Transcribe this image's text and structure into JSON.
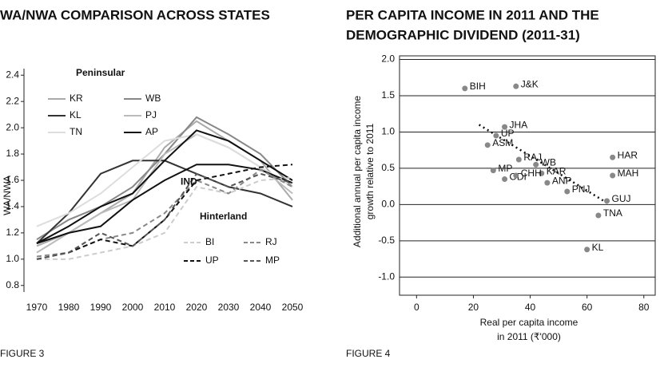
{
  "chart_data": [
    {
      "type": "line",
      "title": "WA/NWA COMPARISON ACROSS STATES",
      "ylabel": "WA/NWA",
      "caption": "FIGURE 3",
      "legend_titles": {
        "solid": "Peninsular",
        "dashed": "Hinterland"
      },
      "x": [
        1970,
        1980,
        1990,
        2000,
        2010,
        2020,
        2030,
        2040,
        2050
      ],
      "xlim": [
        1966,
        2054
      ],
      "xticks": [
        1970,
        1980,
        1990,
        2000,
        2010,
        2020,
        2030,
        2040,
        2050
      ],
      "ylim": [
        0.75,
        2.45
      ],
      "yticks": [
        0.8,
        {
          "value": 1,
          "label": "1.0"
        },
        1.2,
        1.4,
        1.6,
        1.8,
        {
          "value": 2,
          "label": "2.0"
        },
        2.2,
        2.4
      ],
      "series": [
        {
          "name": "KR",
          "color": "#aaaaaa",
          "dashed": false,
          "values": [
            1.1,
            1.2,
            1.35,
            1.5,
            1.85,
            2.05,
            1.9,
            1.75,
            1.45
          ]
        },
        {
          "name": "WB",
          "color": "#888888",
          "dashed": false,
          "values": [
            1.15,
            1.3,
            1.4,
            1.55,
            1.8,
            2.08,
            1.95,
            1.8,
            1.55
          ]
        },
        {
          "name": "KL",
          "color": "#333333",
          "dashed": false,
          "values": [
            1.12,
            1.35,
            1.65,
            1.75,
            1.75,
            1.65,
            1.55,
            1.5,
            1.4
          ]
        },
        {
          "name": "PJ",
          "color": "#bbbbbb",
          "dashed": false,
          "values": [
            1.05,
            1.2,
            1.35,
            1.45,
            1.8,
            1.95,
            1.85,
            1.7,
            1.5
          ]
        },
        {
          "name": "TN",
          "color": "#dddddd",
          "dashed": false,
          "values": [
            1.25,
            1.35,
            1.5,
            1.7,
            1.9,
            1.95,
            1.85,
            1.7,
            1.55
          ]
        },
        {
          "name": "AP",
          "color": "#111111",
          "dashed": false,
          "values": [
            1.12,
            1.25,
            1.4,
            1.5,
            1.75,
            1.98,
            1.9,
            1.75,
            1.6
          ]
        },
        {
          "name": "IND",
          "color": "#111111",
          "dashed": false,
          "inline_label": true,
          "values": [
            1.12,
            1.2,
            1.25,
            1.45,
            1.6,
            1.72,
            1.72,
            1.68,
            1.58
          ]
        },
        {
          "name": "BI",
          "color": "#cccccc",
          "dashed": true,
          "values": [
            1.0,
            1.0,
            1.05,
            1.1,
            1.2,
            1.55,
            1.5,
            1.6,
            1.62
          ]
        },
        {
          "name": "RJ",
          "color": "#888888",
          "dashed": true,
          "values": [
            1.02,
            1.05,
            1.15,
            1.2,
            1.35,
            1.6,
            1.5,
            1.68,
            1.55
          ]
        },
        {
          "name": "UP",
          "color": "#111111",
          "dashed": true,
          "values": [
            1.0,
            1.05,
            1.15,
            1.1,
            1.3,
            1.6,
            1.65,
            1.7,
            1.72
          ]
        },
        {
          "name": "MP",
          "color": "#555555",
          "dashed": true,
          "values": [
            1.0,
            1.05,
            1.2,
            1.1,
            1.3,
            1.65,
            1.55,
            1.65,
            1.58
          ]
        }
      ]
    },
    {
      "type": "scatter",
      "title": [
        "PER CAPITA INCOME IN 2011 AND THE",
        "DEMOGRAPHIC DIVIDEND (2011-31)"
      ],
      "ylabel": [
        "Additional annual per capita income",
        "growth relative to 2011"
      ],
      "xlabel": [
        "Real per capita income",
        "in 2011 (₹'000)"
      ],
      "caption": "FIGURE 4",
      "xlim": [
        -6,
        84
      ],
      "xticks": [
        0,
        20,
        40,
        60,
        80
      ],
      "ylim": [
        -1.25,
        2.05
      ],
      "yticks": [
        {
          "value": -1,
          "label": "-1.0"
        },
        -0.5,
        {
          "value": 0,
          "label": "0.0"
        },
        0.5,
        {
          "value": 1,
          "label": "1.0"
        },
        1.5,
        {
          "value": 2,
          "label": "2.0"
        }
      ],
      "grid": true,
      "color": "#888888",
      "point_labels": [
        "BIH",
        "J&K",
        "UP",
        "JHA",
        "ASM",
        "RAJ",
        "WB",
        "KAR",
        "MP",
        "ODI",
        "CHH",
        "ANP",
        "PNJ",
        "HAR",
        "MAH",
        "GUJ",
        "TNA",
        "KL"
      ],
      "x": [
        17,
        35,
        28,
        31,
        25,
        36,
        42,
        44,
        27,
        31,
        35,
        46,
        53,
        69,
        69,
        67,
        64,
        60
      ],
      "values": [
        1.6,
        1.63,
        0.95,
        1.07,
        0.82,
        0.62,
        0.55,
        0.43,
        0.47,
        0.35,
        0.4,
        0.3,
        0.18,
        0.65,
        0.4,
        0.05,
        -0.15,
        -0.62
      ],
      "trendline": {
        "x": [
          22,
          68
        ],
        "values": [
          1.1,
          0
        ]
      }
    }
  ]
}
